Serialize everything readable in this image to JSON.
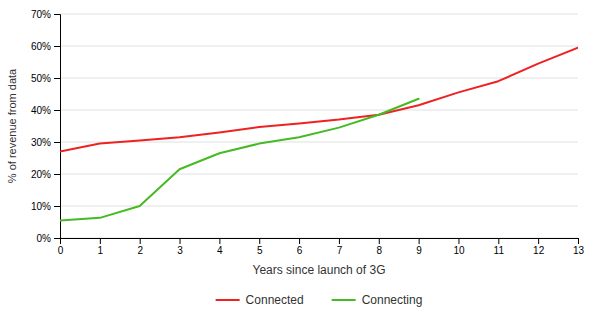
{
  "chart_data": {
    "type": "line",
    "xlabel": "Years since launch of 3G",
    "ylabel": "% of revenue from data",
    "series": [
      {
        "name": "Connected",
        "color": "#ee2222",
        "x": [
          0,
          1,
          2,
          3,
          4,
          5,
          6,
          7,
          8,
          9,
          10,
          11,
          12,
          13
        ],
        "values": [
          0.27,
          0.295,
          0.305,
          0.315,
          0.33,
          0.347,
          0.358,
          0.37,
          0.385,
          0.415,
          0.455,
          0.49,
          0.545,
          0.595
        ]
      },
      {
        "name": "Connecting",
        "color": "#44bb22",
        "x": [
          0,
          1,
          2,
          3,
          4,
          5,
          6,
          7,
          8,
          9
        ],
        "values": [
          0.055,
          0.063,
          0.1,
          0.215,
          0.265,
          0.295,
          0.315,
          0.345,
          0.385,
          0.435
        ]
      }
    ],
    "xlim": [
      0,
      13
    ],
    "xticks": [
      0,
      1,
      2,
      3,
      4,
      5,
      6,
      7,
      8,
      9,
      10,
      11,
      12,
      13
    ],
    "ylim": [
      0,
      0.7
    ],
    "yticks": [
      {
        "value": 0,
        "label": "0%"
      },
      {
        "value": 0.1,
        "label": "10%"
      },
      {
        "value": 0.2,
        "label": "20%"
      },
      {
        "value": 0.3,
        "label": "30%"
      },
      {
        "value": 0.4,
        "label": "40%"
      },
      {
        "value": 0.5,
        "label": "50%"
      },
      {
        "value": 0.6,
        "label": "60%"
      },
      {
        "value": 0.7,
        "label": "70%"
      }
    ],
    "grid": true,
    "legend": "bottom"
  }
}
